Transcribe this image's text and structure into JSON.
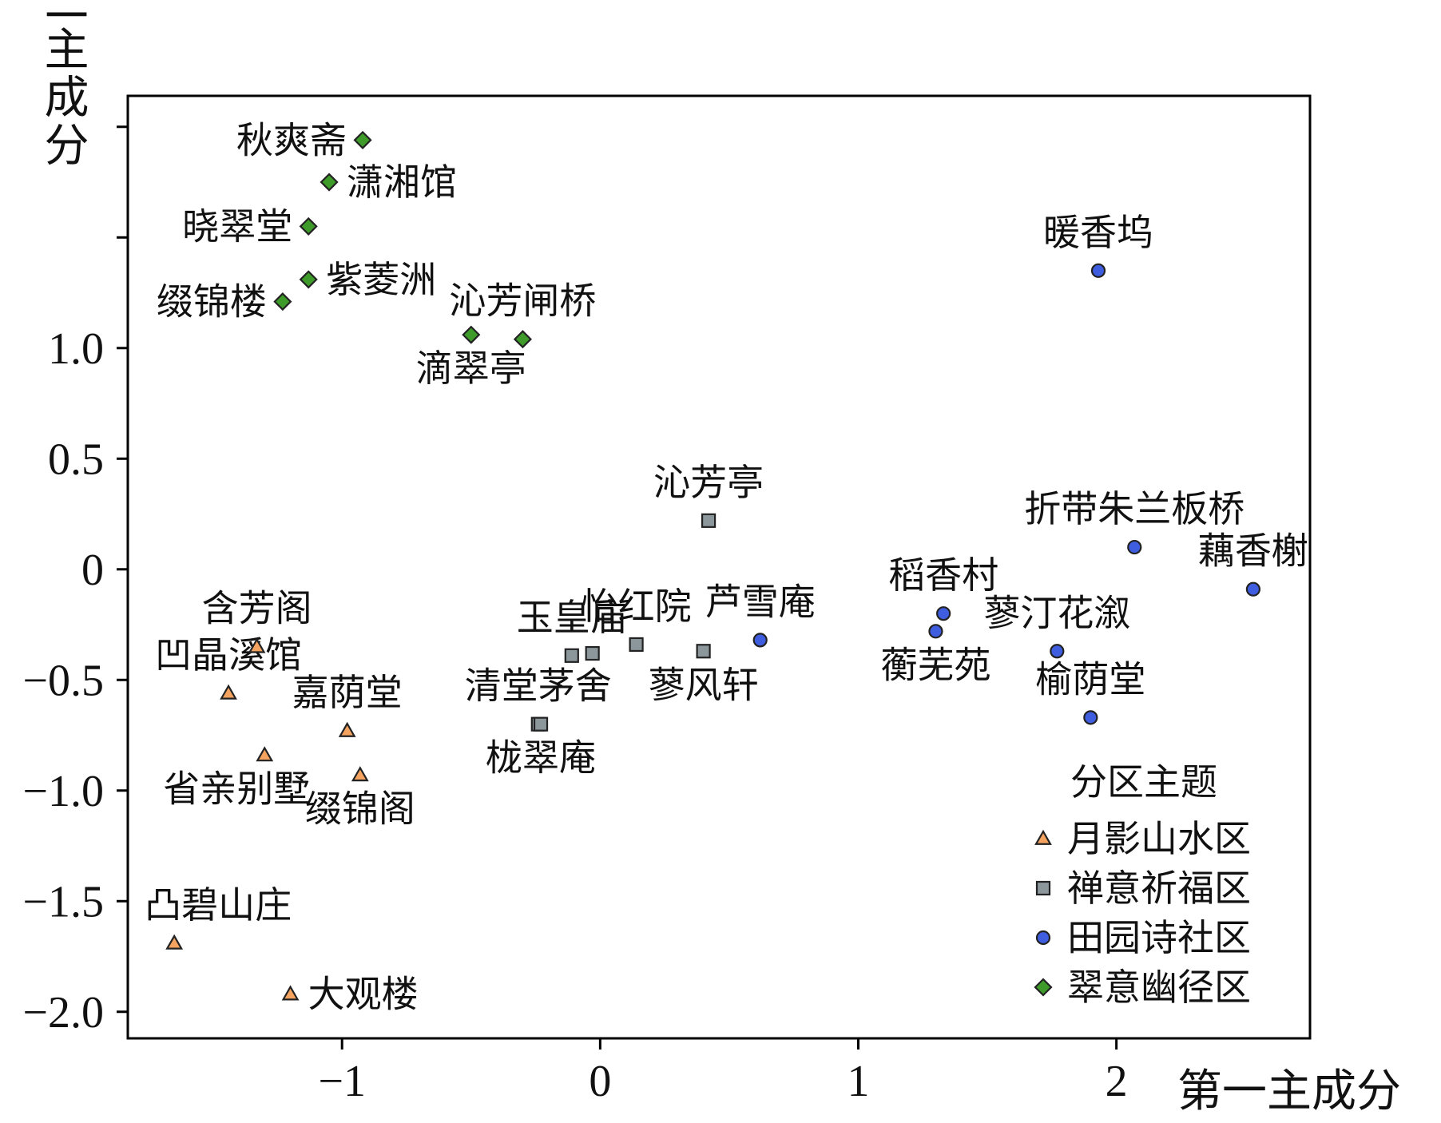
{
  "chart_data": {
    "type": "scatter",
    "xlabel": "第一主成分",
    "ylabel": "第二主成分",
    "xlim": [
      -1.83,
      2.75
    ],
    "ylim": [
      -2.12,
      2.14
    ],
    "xticks": [
      {
        "value": -1,
        "label": "−1"
      },
      {
        "value": 0,
        "label": "0"
      },
      {
        "value": 1,
        "label": "1"
      },
      {
        "value": 2,
        "label": "2"
      }
    ],
    "yticks": [
      {
        "value": 2.0,
        "label": ""
      },
      {
        "value": 1.5,
        "label": ""
      },
      {
        "value": 1.0,
        "label": "1.0"
      },
      {
        "value": 0.5,
        "label": "0.5"
      },
      {
        "value": 0,
        "label": "0"
      },
      {
        "value": -0.5,
        "label": "−0.5"
      },
      {
        "value": -1.0,
        "label": "−1.0"
      },
      {
        "value": -1.5,
        "label": "−1.5"
      },
      {
        "value": -2.0,
        "label": "−2.0"
      }
    ],
    "legend": {
      "title": "分区主题",
      "position": "bottom-right"
    },
    "grid": false,
    "series": [
      {
        "name": "月影山水区",
        "marker": "triangle",
        "color": "#f4a460",
        "points": [
          {
            "label": "含芳阁",
            "x": -1.33,
            "y": -0.35,
            "label_pos": "top"
          },
          {
            "label": "凹晶溪馆",
            "x": -1.44,
            "y": -0.56,
            "label_pos": "top"
          },
          {
            "label": "嘉荫堂",
            "x": -0.98,
            "y": -0.73,
            "label_pos": "top"
          },
          {
            "label": "省亲别墅",
            "x": -1.3,
            "y": -0.84,
            "label_pos": "bottom-left"
          },
          {
            "label": "缀锦阁",
            "x": -0.93,
            "y": -0.93,
            "label_pos": "bottom"
          },
          {
            "label": "凸碧山庄",
            "x": -1.65,
            "y": -1.69,
            "label_pos": "top-right"
          },
          {
            "label": "大观楼",
            "x": -1.2,
            "y": -1.92,
            "label_pos": "right"
          }
        ]
      },
      {
        "name": "禅意祈福区",
        "marker": "square",
        "color": "#8c979c",
        "points": [
          {
            "label": "沁芳亭",
            "x": 0.42,
            "y": 0.22,
            "label_pos": "top"
          },
          {
            "label": "玉皇庙",
            "x": -0.11,
            "y": -0.39,
            "label_pos": "top"
          },
          {
            "label": "",
            "x": -0.03,
            "y": -0.38,
            "label_pos": "none"
          },
          {
            "label": "怡红院",
            "x": 0.14,
            "y": -0.34,
            "label_pos": "top"
          },
          {
            "label": "蓼风轩",
            "x": 0.4,
            "y": -0.37,
            "label_pos": "bottom"
          },
          {
            "label": "清堂茅舍",
            "x": -0.24,
            "y": -0.7,
            "label_pos": "top"
          },
          {
            "label": "栊翠庵",
            "x": -0.23,
            "y": -0.7,
            "label_pos": "bottom"
          }
        ]
      },
      {
        "name": "田园诗社区",
        "marker": "circle",
        "color": "#3f5ddf",
        "points": [
          {
            "label": "暖香坞",
            "x": 1.93,
            "y": 1.35,
            "label_pos": "top"
          },
          {
            "label": "折带朱兰板桥",
            "x": 2.07,
            "y": 0.1,
            "label_pos": "top"
          },
          {
            "label": "藕香榭",
            "x": 2.53,
            "y": -0.09,
            "label_pos": "top"
          },
          {
            "label": "芦雪庵",
            "x": 0.62,
            "y": -0.32,
            "label_pos": "top"
          },
          {
            "label": "稻香村",
            "x": 1.33,
            "y": -0.2,
            "label_pos": "top"
          },
          {
            "label": "蘅芜苑",
            "x": 1.3,
            "y": -0.28,
            "label_pos": "bottom"
          },
          {
            "label": "蓼汀花溆",
            "x": 1.77,
            "y": -0.37,
            "label_pos": "top"
          },
          {
            "label": "榆荫堂",
            "x": 1.9,
            "y": -0.67,
            "label_pos": "top"
          }
        ]
      },
      {
        "name": "翠意幽径区",
        "marker": "diamond",
        "color": "#3e9b2a",
        "points": [
          {
            "label": "秋爽斋",
            "x": -0.92,
            "y": 1.94,
            "label_pos": "left"
          },
          {
            "label": "潇湘馆",
            "x": -1.05,
            "y": 1.75,
            "label_pos": "right"
          },
          {
            "label": "晓翠堂",
            "x": -1.13,
            "y": 1.55,
            "label_pos": "left"
          },
          {
            "label": "紫菱洲",
            "x": -1.13,
            "y": 1.31,
            "label_pos": "right"
          },
          {
            "label": "缀锦楼",
            "x": -1.23,
            "y": 1.21,
            "label_pos": "left"
          },
          {
            "label": "滴翠亭",
            "x": -0.5,
            "y": 1.06,
            "label_pos": "bottom"
          },
          {
            "label": "沁芳闸桥",
            "x": -0.3,
            "y": 1.04,
            "label_pos": "top"
          }
        ]
      }
    ]
  }
}
